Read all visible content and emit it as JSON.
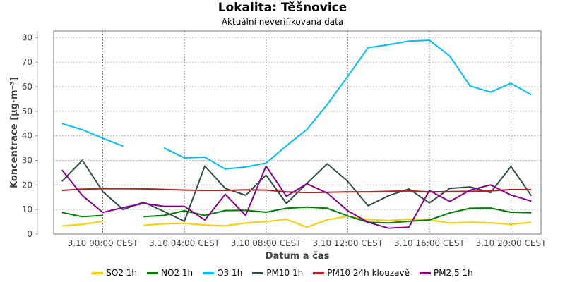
{
  "chart_data": {
    "type": "line",
    "title": "Lokalita: Těšnovice",
    "subtitle": "Aktuální neverifikovaná data",
    "xlabel": "Datum a čas",
    "ylabel": "Koncentrace [µg·m⁻³]",
    "ylim": [
      0,
      82
    ],
    "yticks": [
      0,
      10,
      20,
      30,
      40,
      50,
      60,
      70,
      80
    ],
    "x_hours": [
      -2,
      -1,
      0,
      1,
      2,
      3,
      4,
      5,
      6,
      7,
      8,
      9,
      10,
      11,
      12,
      13,
      14,
      15,
      16,
      17,
      18,
      19,
      20,
      21
    ],
    "xlim_hours": [
      -2.4,
      21.5
    ],
    "xticks": [
      {
        "hour": 0,
        "label": "3.10 00:00 CEST"
      },
      {
        "hour": 4,
        "label": "3.10 04:00 CEST"
      },
      {
        "hour": 8,
        "label": "3.10 08:00 CEST"
      },
      {
        "hour": 12,
        "label": "3.10 12:00 CEST"
      },
      {
        "hour": 16,
        "label": "3.10 16:00 CEST"
      },
      {
        "hour": 20,
        "label": "3.10 20:00 CEST"
      }
    ],
    "grid": true,
    "legend_position": "bottom",
    "series": [
      {
        "name": "SO2 1h",
        "color": "#ffcc00",
        "values": [
          3.3,
          4,
          5.2,
          null,
          3.6,
          4.2,
          4.4,
          3.7,
          3.4,
          4.5,
          5.1,
          6,
          2.8,
          5.8,
          7.3,
          5.9,
          5.5,
          6,
          5.8,
          4.5,
          4.8,
          4.6,
          4,
          4.8
        ]
      },
      {
        "name": "NO2 1h",
        "color": "#008000",
        "values": [
          8.8,
          7.1,
          7.6,
          null,
          7.1,
          7.6,
          9.5,
          7.6,
          9.6,
          9.7,
          8.9,
          10.5,
          11,
          10.5,
          7.4,
          4.8,
          4.5,
          5.2,
          5.7,
          8.6,
          10.5,
          10.6,
          8.9,
          8.7
        ]
      },
      {
        "name": "O3 1h",
        "color": "#00bfff",
        "values": [
          45,
          42.5,
          39,
          35.8,
          null,
          35.1,
          31,
          31.3,
          26.5,
          27.3,
          28.9,
          36,
          42.6,
          52.8,
          64.2,
          75.9,
          77.1,
          78.6,
          78.9,
          72.5,
          60.3,
          57.8,
          61.4,
          56.7
        ]
      },
      {
        "name": "PM10 1h",
        "color": "#2f4f4f",
        "values": [
          21.5,
          30,
          17.3,
          10,
          13,
          9.2,
          5.2,
          27.7,
          18.6,
          15.8,
          24,
          12.5,
          20.6,
          28.6,
          21.5,
          11.5,
          15.6,
          18.4,
          12.7,
          18.6,
          19.2,
          16.9,
          27.5,
          15.6
        ]
      },
      {
        "name": "PM10 24h klouzavě",
        "color": "#b22222",
        "values": [
          17.8,
          18.3,
          18.5,
          18.5,
          18.4,
          18.2,
          17.9,
          17.8,
          17.8,
          18,
          17.9,
          17.2,
          16.9,
          17,
          17.2,
          17.2,
          17.4,
          17.6,
          17.2,
          17.3,
          17.4,
          17.6,
          18.1,
          18.1
        ]
      },
      {
        "name": "PM2,5 1h",
        "color": "#8b008b",
        "values": [
          26.1,
          15.7,
          8.8,
          10.8,
          12.5,
          11.3,
          11.3,
          5.7,
          16.2,
          7.6,
          27.7,
          15.4,
          20.5,
          16.7,
          9.5,
          4.8,
          2.4,
          2.8,
          17.7,
          13.3,
          17.9,
          20,
          15.9,
          13.4
        ]
      }
    ]
  }
}
